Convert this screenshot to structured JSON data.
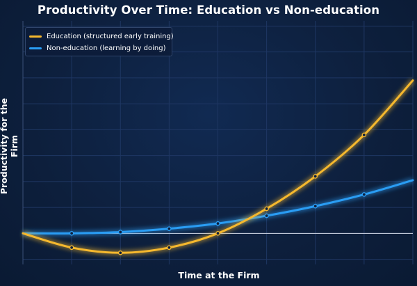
{
  "chart_data": {
    "type": "line",
    "title": "Productivity Over Time: Education vs Non-education",
    "xlabel": "Time at the Firm",
    "ylabel": "Productivity for the Firm",
    "xlim": [
      0,
      8
    ],
    "ylim": [
      -1.2,
      8.2
    ],
    "grid": true,
    "legend_position": "top-left",
    "x_ticks_shown": false,
    "y_ticks_shown": false,
    "series": [
      {
        "name": "Education (structured early training)",
        "color": "#f5b82e",
        "x": [
          0,
          1,
          2,
          3,
          4,
          5,
          6,
          7,
          8
        ],
        "y": [
          0,
          -0.55,
          -0.75,
          -0.55,
          0,
          0.95,
          2.2,
          3.8,
          5.9
        ]
      },
      {
        "name": "Non-education (learning by doing)",
        "color": "#2a9df4",
        "x": [
          0,
          1,
          2,
          3,
          4,
          5,
          6,
          7,
          8
        ],
        "y": [
          0,
          0,
          0.05,
          0.18,
          0.38,
          0.68,
          1.05,
          1.5,
          2.05
        ]
      }
    ]
  }
}
